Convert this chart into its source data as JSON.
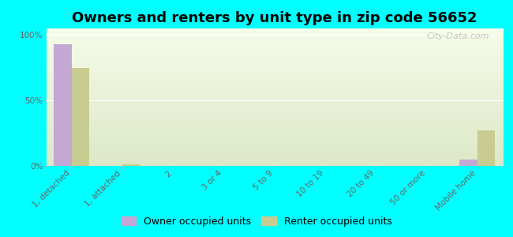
{
  "title": "Owners and renters by unit type in zip code 56652",
  "categories": [
    "1, detached",
    "1, attached",
    "2",
    "3 or 4",
    "5 to 9",
    "10 to 19",
    "20 to 49",
    "50 or more",
    "Mobile home"
  ],
  "owner_values": [
    93,
    0,
    0,
    0,
    0,
    0,
    0,
    0,
    5
  ],
  "renter_values": [
    75,
    1,
    0,
    0,
    0,
    0,
    0,
    0,
    27
  ],
  "owner_color": "#c4a8d4",
  "renter_color": "#c8cc90",
  "background_color": "#00ffff",
  "plot_bg_gradient_top": "#dde8c8",
  "plot_bg_gradient_bottom": "#f5fce8",
  "ylabel_ticks": [
    0,
    50,
    100
  ],
  "ylabel_labels": [
    "0%",
    "50%",
    "100%"
  ],
  "ylim": [
    0,
    105
  ],
  "bar_width": 0.35,
  "legend_owner": "Owner occupied units",
  "legend_renter": "Renter occupied units",
  "watermark": "City-Data.com",
  "title_fontsize": 13,
  "tick_fontsize": 7.5,
  "legend_fontsize": 9
}
